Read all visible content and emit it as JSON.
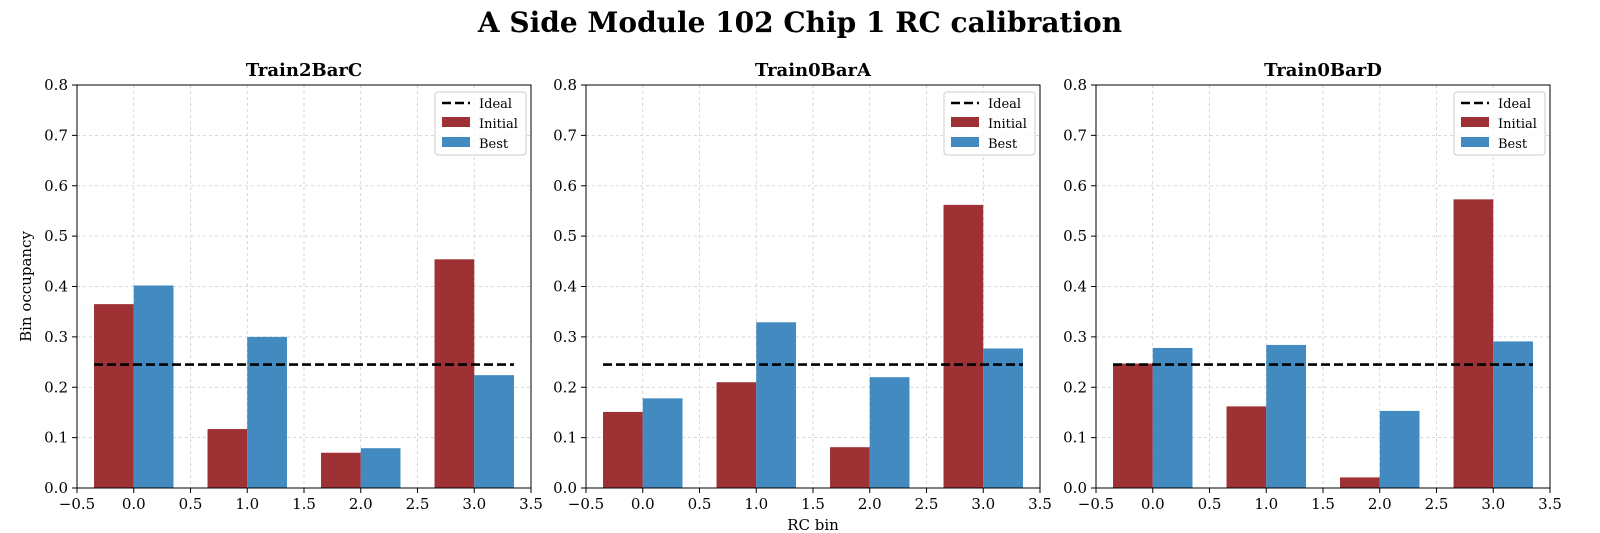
{
  "suptitle": "A Side Module 102 Chip 1 RC calibration",
  "chart_data": [
    {
      "type": "bar",
      "title": "Train2BarC",
      "xlabel": "",
      "ylabel": "Bin occupancy",
      "xlim": [
        -0.5,
        3.5
      ],
      "ylim": [
        0,
        0.8
      ],
      "xticks": [
        "−0.5",
        "0.0",
        "0.5",
        "1.0",
        "1.5",
        "2.0",
        "2.5",
        "3.0",
        "3.5"
      ],
      "yticks": [
        "0.0",
        "0.1",
        "0.2",
        "0.3",
        "0.4",
        "0.5",
        "0.6",
        "0.7",
        "0.8"
      ],
      "grid": true,
      "legend_position": "top-right",
      "x": [
        0,
        1,
        2,
        3
      ],
      "ideal": 0.245,
      "series": [
        {
          "name": "Initial",
          "color": "#9e3133",
          "values": [
            0.365,
            0.117,
            0.07,
            0.454
          ]
        },
        {
          "name": "Best",
          "color": "#428abf",
          "values": [
            0.402,
            0.3,
            0.079,
            0.224
          ]
        }
      ],
      "legend": [
        "Ideal",
        "Initial",
        "Best"
      ]
    },
    {
      "type": "bar",
      "title": "Train0BarA",
      "xlabel": "RC bin",
      "ylabel": "",
      "xlim": [
        -0.5,
        3.5
      ],
      "ylim": [
        0,
        0.8
      ],
      "xticks": [
        "−0.5",
        "0.0",
        "0.5",
        "1.0",
        "1.5",
        "2.0",
        "2.5",
        "3.0",
        "3.5"
      ],
      "yticks": [
        "0.0",
        "0.1",
        "0.2",
        "0.3",
        "0.4",
        "0.5",
        "0.6",
        "0.7",
        "0.8"
      ],
      "grid": true,
      "legend_position": "top-right",
      "x": [
        0,
        1,
        2,
        3
      ],
      "ideal": 0.245,
      "series": [
        {
          "name": "Initial",
          "color": "#9e3133",
          "values": [
            0.151,
            0.21,
            0.081,
            0.562
          ]
        },
        {
          "name": "Best",
          "color": "#428abf",
          "values": [
            0.178,
            0.329,
            0.22,
            0.277
          ]
        }
      ],
      "legend": [
        "Ideal",
        "Initial",
        "Best"
      ]
    },
    {
      "type": "bar",
      "title": "Train0BarD",
      "xlabel": "",
      "ylabel": "",
      "xlim": [
        -0.5,
        3.5
      ],
      "ylim": [
        0,
        0.8
      ],
      "xticks": [
        "−0.5",
        "0.0",
        "0.5",
        "1.0",
        "1.5",
        "2.0",
        "2.5",
        "3.0",
        "3.5"
      ],
      "yticks": [
        "0.0",
        "0.1",
        "0.2",
        "0.3",
        "0.4",
        "0.5",
        "0.6",
        "0.7",
        "0.8"
      ],
      "grid": true,
      "legend_position": "top-right",
      "x": [
        0,
        1,
        2,
        3
      ],
      "ideal": 0.245,
      "series": [
        {
          "name": "Initial",
          "color": "#9e3133",
          "values": [
            0.247,
            0.162,
            0.021,
            0.573
          ]
        },
        {
          "name": "Best",
          "color": "#428abf",
          "values": [
            0.278,
            0.284,
            0.153,
            0.291
          ]
        }
      ],
      "legend": [
        "Ideal",
        "Initial",
        "Best"
      ]
    }
  ]
}
